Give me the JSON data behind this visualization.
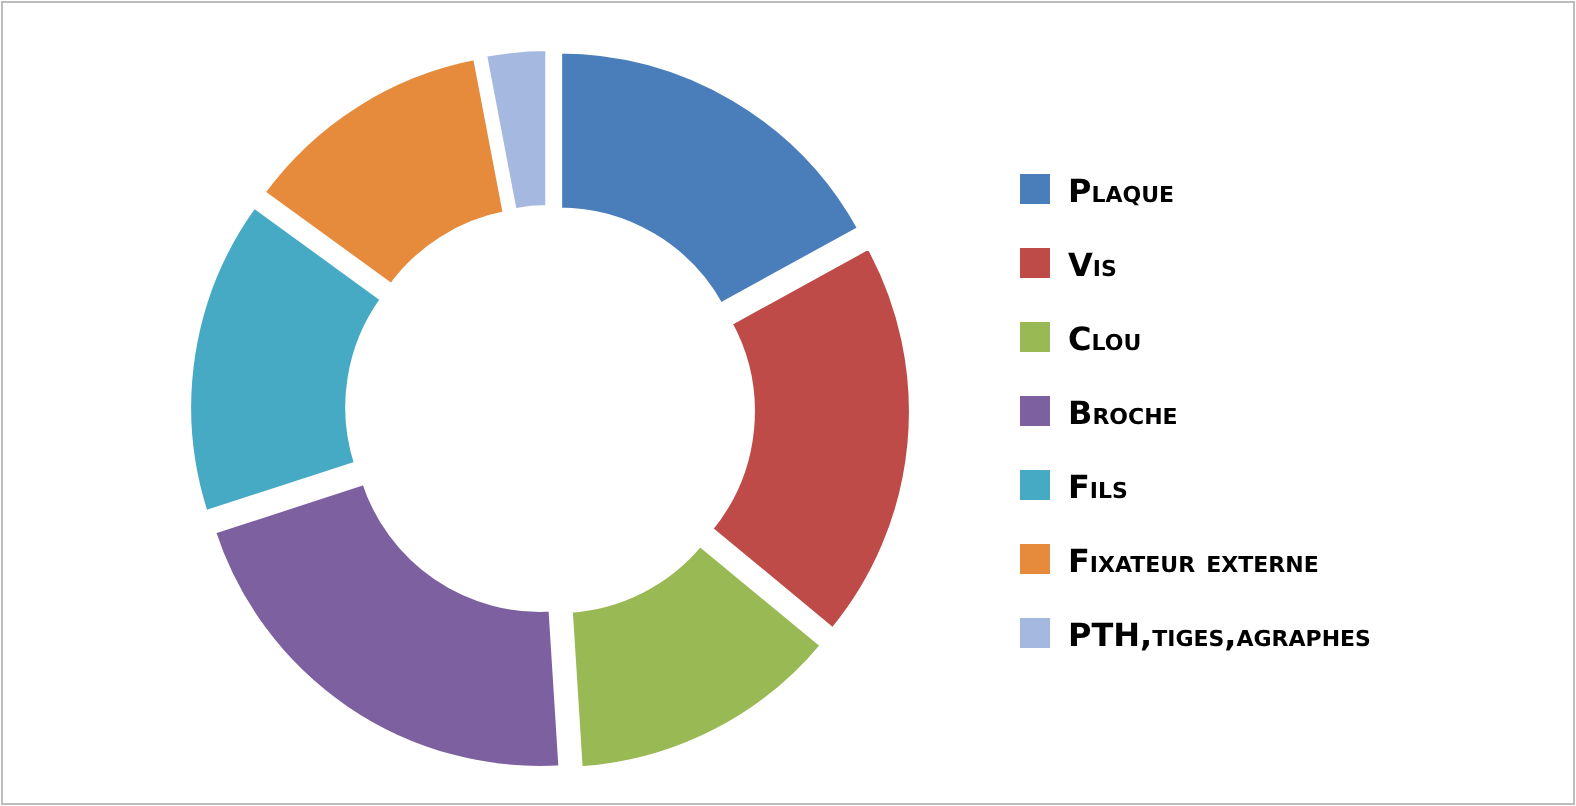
{
  "chart_data": {
    "type": "donut",
    "categories": [
      "Plaque",
      "Vis",
      "Clou",
      "Broche",
      "Fils",
      "Fixateur externe",
      "PTH,tiges,agraphes"
    ],
    "values": [
      17,
      19,
      13,
      21,
      15,
      12,
      3
    ],
    "colors": [
      "#4a7ebb",
      "#be4b48",
      "#98b954",
      "#7d60a0",
      "#46aac5",
      "#e68a3c",
      "#a5b9e0"
    ],
    "legend": "right"
  }
}
